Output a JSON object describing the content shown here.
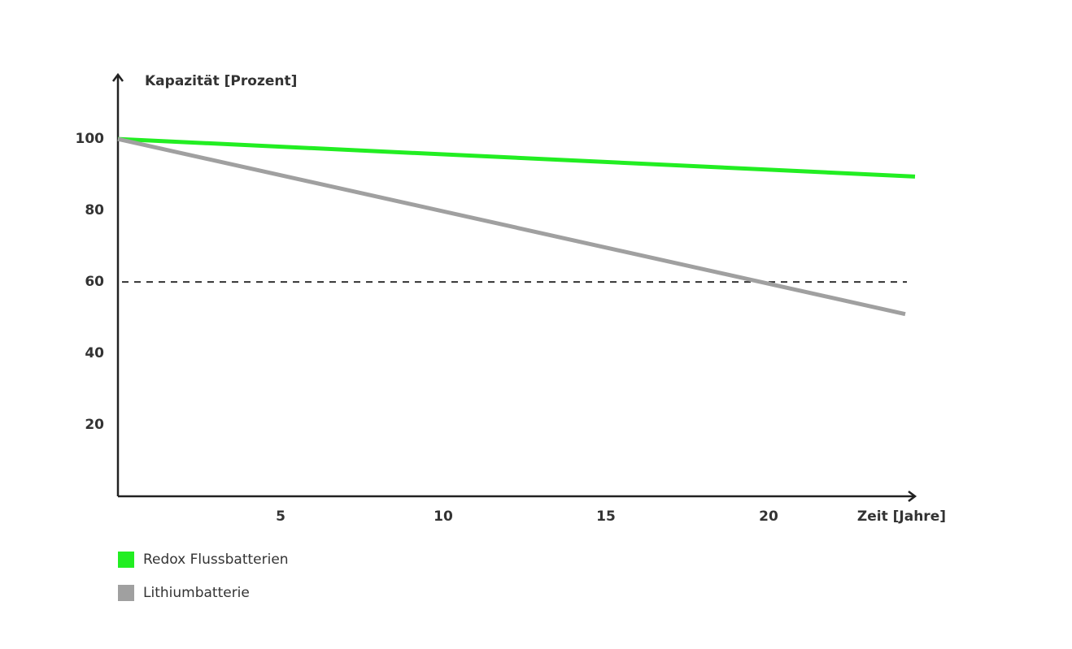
{
  "chart_data": {
    "type": "line",
    "y_label": "Kapazität [Prozent]",
    "x_label": "Zeit [Jahre]",
    "series": [
      {
        "name": "Redox Flussbatterien",
        "color": "#22ee22",
        "x": [
          0,
          24.5
        ],
        "values": [
          100,
          89.5
        ]
      },
      {
        "name": "Lithiumbatterie",
        "color": "#a0a0a0",
        "x": [
          0,
          24.2
        ],
        "values": [
          100,
          51
        ]
      }
    ],
    "xlim": [
      0,
      24.5
    ],
    "ylim": [
      0,
      118
    ],
    "xticks": [
      5,
      10,
      15,
      20
    ],
    "yticks": [
      20,
      40,
      60,
      80,
      100
    ],
    "reference_line": 60,
    "legend": "bottom-left"
  }
}
